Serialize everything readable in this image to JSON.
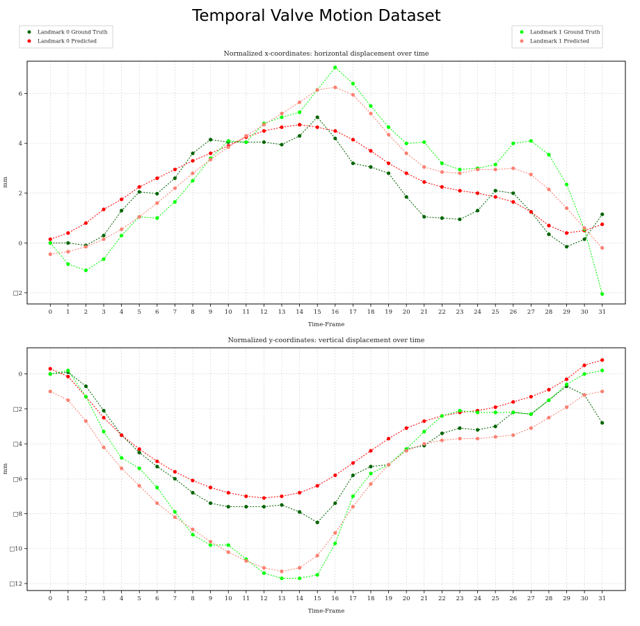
{
  "figure": {
    "title": "Temporal Valve Motion Dataset",
    "legend_left": [
      {
        "label": "Landmark 0 Ground Truth",
        "color": "#006400"
      },
      {
        "label": "Landmark 0 Predicted",
        "color": "#ff0000"
      }
    ],
    "legend_right": [
      {
        "label": "Landmark 1 Ground Truth",
        "color": "#00ff00"
      },
      {
        "label": "Landmark 1 Predicted",
        "color": "#fa8072"
      }
    ]
  },
  "chart_data": [
    {
      "type": "line",
      "title": "Normalized x-coordinates: horizontal displacement over time",
      "xlabel": "Time-Frame",
      "ylabel": "mm",
      "xlim": [
        -1.3,
        32.3
      ],
      "ylim": [
        -2.45,
        7.3
      ],
      "yticks": [
        -2,
        0,
        2,
        4,
        6
      ],
      "ytick_labels": [
        "□2",
        "0",
        "2",
        "4",
        "6"
      ],
      "grid": true,
      "x": [
        0,
        1,
        2,
        3,
        4,
        5,
        6,
        7,
        8,
        9,
        10,
        11,
        12,
        13,
        14,
        15,
        16,
        17,
        18,
        19,
        20,
        21,
        22,
        23,
        24,
        25,
        26,
        27,
        28,
        29,
        30,
        31
      ],
      "series": [
        {
          "name": "Landmark 0 Ground Truth",
          "color": "#006400",
          "values": [
            0.0,
            0.0,
            -0.1,
            0.3,
            1.3,
            2.05,
            1.98,
            2.6,
            3.6,
            4.15,
            4.05,
            4.05,
            4.05,
            3.95,
            4.3,
            5.05,
            4.2,
            3.2,
            3.05,
            2.8,
            1.85,
            1.05,
            1.0,
            0.95,
            1.3,
            2.1,
            2.0,
            1.25,
            0.35,
            -0.15,
            0.15,
            1.15
          ]
        },
        {
          "name": "Landmark 0 Predicted",
          "color": "#ff0000",
          "values": [
            0.15,
            0.4,
            0.8,
            1.35,
            1.75,
            2.25,
            2.6,
            2.95,
            3.3,
            3.6,
            3.9,
            4.25,
            4.5,
            4.65,
            4.75,
            4.65,
            4.5,
            4.15,
            3.7,
            3.2,
            2.8,
            2.45,
            2.25,
            2.1,
            2.0,
            1.85,
            1.65,
            1.25,
            0.7,
            0.4,
            0.5,
            0.75
          ]
        },
        {
          "name": "Landmark 1 Ground Truth",
          "color": "#00ff00",
          "values": [
            0.0,
            -0.85,
            -1.1,
            -0.65,
            0.3,
            1.05,
            1.0,
            1.65,
            2.5,
            3.4,
            4.1,
            4.05,
            4.8,
            5.05,
            5.25,
            6.15,
            7.05,
            6.4,
            5.5,
            4.65,
            4.0,
            4.05,
            3.2,
            2.95,
            3.0,
            3.15,
            4.0,
            4.1,
            3.55,
            2.35,
            0.55,
            -2.05
          ]
        },
        {
          "name": "Landmark 1 Predicted",
          "color": "#fa8072",
          "values": [
            -0.45,
            -0.35,
            -0.15,
            0.15,
            0.55,
            1.05,
            1.6,
            2.2,
            2.8,
            3.35,
            3.85,
            4.3,
            4.75,
            5.2,
            5.65,
            6.15,
            6.25,
            5.95,
            5.2,
            4.35,
            3.6,
            3.05,
            2.85,
            2.8,
            2.95,
            2.95,
            3.0,
            2.75,
            2.15,
            1.4,
            0.6,
            -0.2
          ]
        }
      ]
    },
    {
      "type": "line",
      "title": "Normalized y-coordinates: vertical displacement over time",
      "xlabel": "Time-Frame",
      "ylabel": "mm",
      "xlim": [
        -1.3,
        32.3
      ],
      "ylim": [
        -12.4,
        1.5
      ],
      "yticks": [
        -12,
        -10,
        -8,
        -6,
        -4,
        -2,
        0
      ],
      "ytick_labels": [
        "□12",
        "□10",
        "□8",
        "□6",
        "□4",
        "□2",
        "0"
      ],
      "grid": true,
      "x": [
        0,
        1,
        2,
        3,
        4,
        5,
        6,
        7,
        8,
        9,
        10,
        11,
        12,
        13,
        14,
        15,
        16,
        17,
        18,
        19,
        20,
        21,
        22,
        23,
        24,
        25,
        26,
        27,
        28,
        29,
        30,
        31
      ],
      "series": [
        {
          "name": "Landmark 0 Ground Truth",
          "color": "#006400",
          "values": [
            0.0,
            0.1,
            -0.7,
            -2.1,
            -3.5,
            -4.5,
            -5.3,
            -6.0,
            -6.8,
            -7.4,
            -7.6,
            -7.6,
            -7.6,
            -7.5,
            -7.9,
            -8.5,
            -7.4,
            -5.8,
            -5.3,
            -5.2,
            -4.3,
            -4.1,
            -3.4,
            -3.1,
            -3.2,
            -3.0,
            -2.2,
            -2.3,
            -1.5,
            -0.7,
            -1.2,
            -2.8
          ]
        },
        {
          "name": "Landmark 0 Predicted",
          "color": "#ff0000",
          "values": [
            0.3,
            -0.15,
            -1.3,
            -2.5,
            -3.5,
            -4.3,
            -5.0,
            -5.6,
            -6.1,
            -6.5,
            -6.8,
            -7.0,
            -7.1,
            -7.0,
            -6.8,
            -6.4,
            -5.8,
            -5.1,
            -4.4,
            -3.7,
            -3.1,
            -2.7,
            -2.4,
            -2.2,
            -2.1,
            -1.9,
            -1.6,
            -1.3,
            -0.9,
            -0.3,
            0.5,
            0.8
          ]
        },
        {
          "name": "Landmark 1 Ground Truth",
          "color": "#00ff00",
          "values": [
            0.0,
            0.2,
            -1.3,
            -3.3,
            -4.8,
            -5.4,
            -6.5,
            -7.9,
            -9.2,
            -9.8,
            -9.8,
            -10.6,
            -11.4,
            -11.7,
            -11.7,
            -11.5,
            -9.7,
            -7.0,
            -5.7,
            -5.2,
            -4.3,
            -3.3,
            -2.4,
            -2.1,
            -2.2,
            -2.2,
            -2.2,
            -2.3,
            -1.5,
            -0.6,
            0.0,
            0.2
          ]
        },
        {
          "name": "Landmark 1 Predicted",
          "color": "#fa8072",
          "values": [
            -1.0,
            -1.5,
            -2.7,
            -4.2,
            -5.4,
            -6.4,
            -7.4,
            -8.2,
            -8.9,
            -9.6,
            -10.2,
            -10.7,
            -11.1,
            -11.3,
            -11.1,
            -10.4,
            -9.1,
            -7.6,
            -6.3,
            -5.2,
            -4.4,
            -4.0,
            -3.8,
            -3.7,
            -3.7,
            -3.6,
            -3.5,
            -3.1,
            -2.5,
            -1.9,
            -1.2,
            -1.0
          ]
        }
      ]
    }
  ]
}
